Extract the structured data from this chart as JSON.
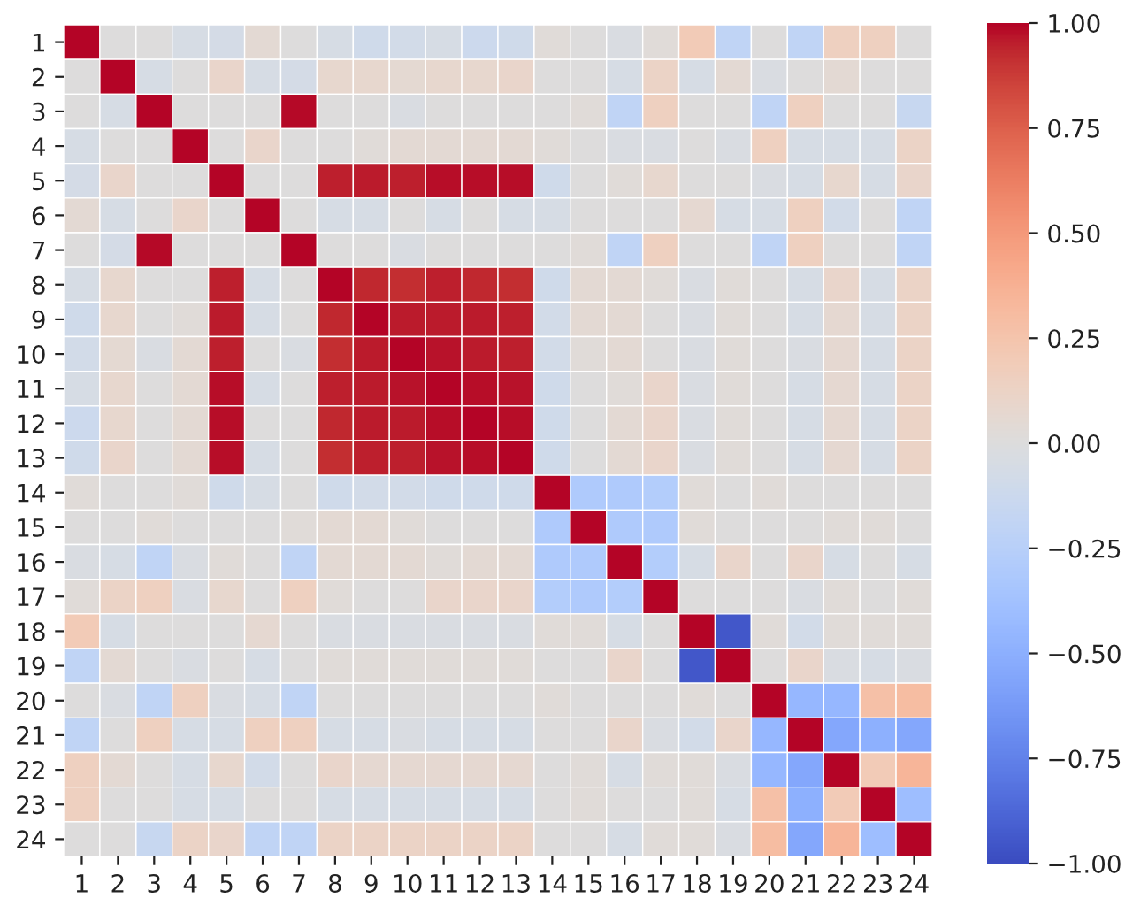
{
  "chart_data": {
    "type": "heatmap",
    "categories": [
      "1",
      "2",
      "3",
      "4",
      "5",
      "6",
      "7",
      "8",
      "9",
      "10",
      "11",
      "12",
      "13",
      "14",
      "15",
      "16",
      "17",
      "18",
      "19",
      "20",
      "21",
      "22",
      "23",
      "24"
    ],
    "y_categories": [
      "1",
      "2",
      "3",
      "4",
      "5",
      "6",
      "7",
      "8",
      "9",
      "10",
      "11",
      "12",
      "13",
      "14",
      "15",
      "16",
      "17",
      "18",
      "19",
      "20",
      "21",
      "22",
      "23",
      "24"
    ],
    "cells": [
      [
        1,
        0,
        0,
        -0.05,
        -0.07,
        0.05,
        0,
        -0.05,
        -0.1,
        -0.08,
        -0.05,
        -0.12,
        -0.1,
        0.03,
        0,
        -0.03,
        0.03,
        0.2,
        -0.2,
        0,
        -0.2,
        0.15,
        0.15,
        0
      ],
      [
        0,
        1,
        -0.05,
        0,
        0.1,
        -0.05,
        -0.07,
        0.08,
        0.08,
        0.06,
        0.08,
        0.08,
        0.1,
        0,
        0,
        -0.05,
        0.12,
        -0.05,
        0.05,
        -0.03,
        0,
        0.05,
        0,
        0
      ],
      [
        0,
        -0.05,
        1,
        0,
        0,
        0,
        0.99,
        0,
        0,
        -0.03,
        0,
        0,
        0,
        0,
        0.03,
        -0.2,
        0.15,
        0,
        0,
        -0.2,
        0.15,
        0,
        0,
        -0.15
      ],
      [
        -0.05,
        0,
        0,
        1,
        0,
        0.1,
        0,
        0,
        0.03,
        0.05,
        0.05,
        0.05,
        0.05,
        0.03,
        0,
        -0.03,
        -0.03,
        0,
        -0.03,
        0.15,
        -0.05,
        -0.05,
        -0.05,
        0.12
      ],
      [
        -0.07,
        0.1,
        0,
        0,
        1,
        0,
        0,
        0.95,
        0.96,
        0.95,
        0.98,
        0.98,
        0.98,
        -0.1,
        0,
        0.03,
        0.08,
        0,
        0,
        -0.03,
        -0.05,
        0.08,
        -0.05,
        0.1
      ],
      [
        0.05,
        -0.05,
        0,
        0.1,
        0,
        1,
        0,
        -0.05,
        -0.05,
        0,
        -0.05,
        0,
        -0.05,
        -0.05,
        0,
        0,
        0,
        0.07,
        -0.05,
        -0.05,
        0.15,
        -0.08,
        0,
        -0.2
      ],
      [
        0,
        -0.07,
        0.99,
        0,
        0,
        0,
        1,
        0,
        0,
        -0.03,
        0,
        0,
        0,
        0,
        0.03,
        -0.2,
        0.15,
        0,
        0,
        -0.2,
        0.15,
        0,
        0,
        -0.2
      ],
      [
        -0.05,
        0.08,
        0,
        0,
        0.95,
        -0.05,
        0,
        1,
        0.93,
        0.92,
        0.95,
        0.93,
        0.92,
        -0.1,
        0.05,
        0.05,
        0.03,
        -0.03,
        0.03,
        0,
        -0.05,
        0.1,
        -0.05,
        0.12
      ],
      [
        -0.1,
        0.08,
        0,
        0.03,
        0.96,
        -0.05,
        0,
        0.93,
        1,
        0.96,
        0.96,
        0.96,
        0.95,
        -0.08,
        0.05,
        0.05,
        0,
        -0.03,
        0.03,
        0,
        -0.05,
        0.07,
        -0.05,
        0.12
      ],
      [
        -0.08,
        0.06,
        -0.03,
        0.05,
        0.95,
        0,
        -0.03,
        0.92,
        0.96,
        1,
        0.97,
        0.96,
        0.95,
        -0.08,
        0.03,
        0.05,
        0,
        -0.03,
        0.03,
        0,
        -0.03,
        0.07,
        -0.05,
        0.12
      ],
      [
        -0.05,
        0.08,
        0,
        0.05,
        0.98,
        -0.05,
        0,
        0.95,
        0.96,
        0.97,
        1,
        0.98,
        0.97,
        -0.1,
        0,
        0.03,
        0.1,
        -0.03,
        0.03,
        0,
        -0.05,
        0.07,
        -0.05,
        0.12
      ],
      [
        -0.12,
        0.08,
        0,
        0.05,
        0.98,
        0,
        0,
        0.93,
        0.96,
        0.96,
        0.98,
        1,
        0.98,
        -0.1,
        0,
        0.05,
        0.1,
        -0.03,
        0.03,
        0,
        -0.05,
        0.07,
        -0.05,
        0.12
      ],
      [
        -0.1,
        0.1,
        0,
        0.05,
        0.98,
        -0.05,
        0,
        0.92,
        0.95,
        0.95,
        0.97,
        0.98,
        1,
        -0.1,
        0,
        0.05,
        0.1,
        -0.03,
        0.03,
        0,
        -0.05,
        0.07,
        -0.05,
        0.12
      ],
      [
        0.03,
        0,
        0,
        0.03,
        -0.1,
        -0.05,
        0,
        -0.1,
        -0.08,
        -0.08,
        -0.1,
        -0.1,
        -0.1,
        1,
        -0.3,
        -0.3,
        -0.28,
        0.03,
        0,
        0.03,
        0,
        0,
        0,
        0
      ],
      [
        0,
        0,
        0.03,
        0,
        0,
        0,
        0.03,
        0.05,
        0.05,
        0.03,
        0,
        0,
        0,
        -0.3,
        1,
        -0.3,
        -0.3,
        0.03,
        0,
        0,
        0,
        0.03,
        0.03,
        0
      ],
      [
        -0.03,
        -0.05,
        -0.2,
        -0.03,
        0.03,
        0,
        -0.2,
        0.05,
        0.05,
        0.05,
        0.03,
        0.05,
        0.05,
        -0.3,
        -0.3,
        1,
        -0.28,
        -0.05,
        0.1,
        0,
        0.1,
        -0.05,
        0,
        -0.05
      ],
      [
        0.03,
        0.12,
        0.15,
        -0.03,
        0.08,
        0,
        0.15,
        0.03,
        0,
        0,
        0.1,
        0.1,
        0.1,
        -0.28,
        -0.3,
        -0.28,
        1,
        0,
        0,
        0,
        -0.03,
        0.03,
        0,
        0.03
      ],
      [
        0.2,
        -0.05,
        0,
        0,
        0,
        0.07,
        0,
        -0.03,
        -0.03,
        -0.03,
        -0.03,
        -0.03,
        -0.03,
        0.03,
        0.03,
        -0.05,
        0,
        1,
        -0.95,
        0.03,
        -0.08,
        0.03,
        0.03,
        0.03
      ],
      [
        -0.2,
        0.05,
        0,
        -0.03,
        0,
        -0.05,
        0,
        0.03,
        0.03,
        0.03,
        0.03,
        0.03,
        0.03,
        0,
        0,
        0.1,
        0,
        -0.95,
        1,
        0,
        0.1,
        -0.03,
        -0.05,
        -0.03
      ],
      [
        0,
        -0.03,
        -0.2,
        0.15,
        -0.03,
        -0.05,
        -0.2,
        0,
        0,
        0,
        0,
        0,
        0,
        0.03,
        0,
        0,
        0,
        0.03,
        0,
        1,
        -0.45,
        -0.45,
        0.28,
        0.3
      ],
      [
        -0.2,
        0,
        0.15,
        -0.05,
        -0.05,
        0.15,
        0.15,
        -0.05,
        -0.05,
        -0.03,
        -0.05,
        -0.05,
        -0.05,
        0,
        0,
        0.1,
        -0.03,
        -0.08,
        0.1,
        -0.45,
        1,
        -0.55,
        -0.5,
        -0.55
      ],
      [
        0.15,
        0.05,
        0,
        -0.05,
        0.08,
        -0.08,
        0,
        0.1,
        0.07,
        0.07,
        0.07,
        0.07,
        0.07,
        0,
        0.03,
        -0.05,
        0.03,
        0.03,
        -0.03,
        -0.45,
        -0.55,
        1,
        0.2,
        0.35
      ],
      [
        0.15,
        0,
        0,
        -0.05,
        -0.05,
        0,
        0,
        -0.05,
        -0.05,
        -0.05,
        -0.05,
        -0.05,
        -0.05,
        0,
        0.03,
        0,
        0,
        0.03,
        -0.05,
        0.28,
        -0.5,
        0.2,
        1,
        -0.4
      ],
      [
        0,
        0,
        -0.15,
        0.12,
        0.1,
        -0.2,
        -0.2,
        0.12,
        0.12,
        0.12,
        0.12,
        0.12,
        0.12,
        0,
        0,
        -0.05,
        0.03,
        0.03,
        -0.03,
        0.3,
        -0.55,
        0.35,
        -0.4,
        1
      ]
    ],
    "clim": [
      -1,
      1
    ],
    "cticks": [
      {
        "value": -1,
        "label": "−1.00"
      },
      {
        "value": -0.75,
        "label": "−0.75"
      },
      {
        "value": -0.5,
        "label": "−0.50"
      },
      {
        "value": -0.25,
        "label": "−0.25"
      },
      {
        "value": 0,
        "label": "0.00"
      },
      {
        "value": 0.25,
        "label": "0.25"
      },
      {
        "value": 0.5,
        "label": "0.50"
      },
      {
        "value": 0.75,
        "label": "0.75"
      },
      {
        "value": 1,
        "label": "1.00"
      }
    ]
  }
}
